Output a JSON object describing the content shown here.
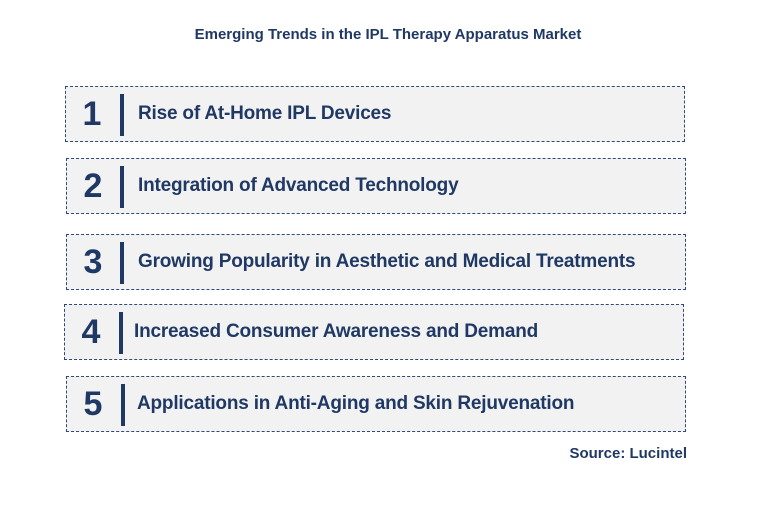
{
  "title": "Emerging Trends in the IPL Therapy Apparatus Market",
  "accent_color": "#1f3864",
  "trends": [
    {
      "number": "1",
      "label": "Rise of At-Home IPL Devices"
    },
    {
      "number": "2",
      "label": "Integration of Advanced Technology"
    },
    {
      "number": "3",
      "label": "Growing Popularity in Aesthetic and Medical Treatments"
    },
    {
      "number": "4",
      "label": "Increased Consumer Awareness and Demand"
    },
    {
      "number": "5",
      "label": "Applications in Anti-Aging and Skin Rejuvenation"
    }
  ],
  "source": "Source: Lucintel"
}
